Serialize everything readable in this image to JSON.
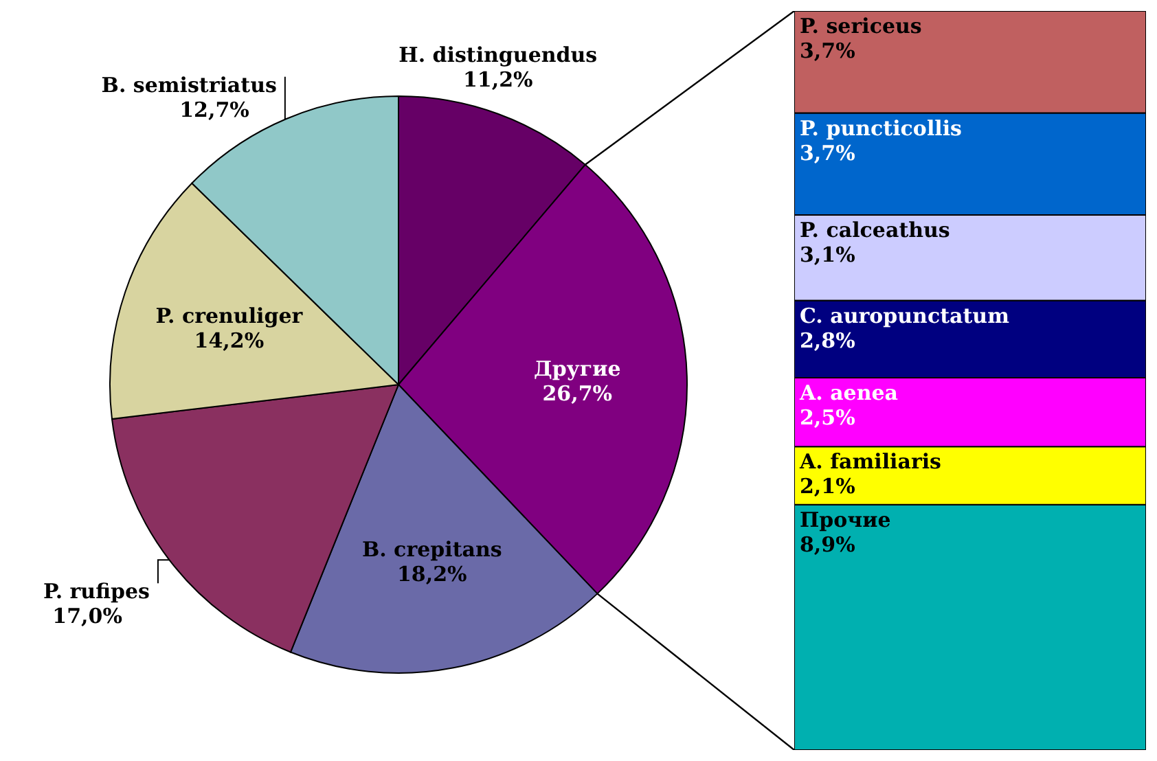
{
  "chart_data": [
    {
      "type": "pie",
      "categories": [
        "H. distinguendus",
        "Другие",
        "B. crepitans",
        "P. rufipes",
        "P. crenuliger",
        "B. semistriatus"
      ],
      "values": [
        11.2,
        26.7,
        18.2,
        17.0,
        14.2,
        12.7
      ],
      "value_labels": [
        "11,2%",
        "26,7%",
        "18,2%",
        "17,0%",
        "14,2%",
        "12,7%"
      ],
      "colors": [
        "#660066",
        "#800080",
        "#6a6aa8",
        "#8a3060",
        "#d8d4a0",
        "#90c8c8"
      ]
    },
    {
      "type": "bar",
      "stacked": true,
      "categories": [
        null
      ],
      "series": [
        {
          "name": "Прочие",
          "color": "#00b0b0",
          "values": [
            8.9
          ],
          "value_labels": [
            "8,9%"
          ]
        },
        {
          "name": "A. familiaris",
          "color": "#ffff00",
          "values": [
            2.1
          ],
          "value_labels": [
            "2,1%"
          ]
        },
        {
          "name": "A. aenea",
          "color": "#ff00ff",
          "values": [
            2.5
          ],
          "value_labels": [
            "2,5%"
          ]
        },
        {
          "name": "C. auropunctatum",
          "color": "#000080",
          "values": [
            2.8
          ],
          "value_labels": [
            "2,8%"
          ]
        },
        {
          "name": "P. calceathus",
          "color": "#ccccff",
          "values": [
            3.1
          ],
          "value_labels": [
            "3,1%"
          ]
        },
        {
          "name": "P. puncticollis",
          "color": "#0066cc",
          "values": [
            3.7
          ],
          "value_labels": [
            "3,7%"
          ]
        },
        {
          "name": "P. sericeus",
          "color": "#c06060",
          "values": [
            3.7
          ],
          "value_labels": [
            "3,7%"
          ]
        }
      ]
    }
  ]
}
